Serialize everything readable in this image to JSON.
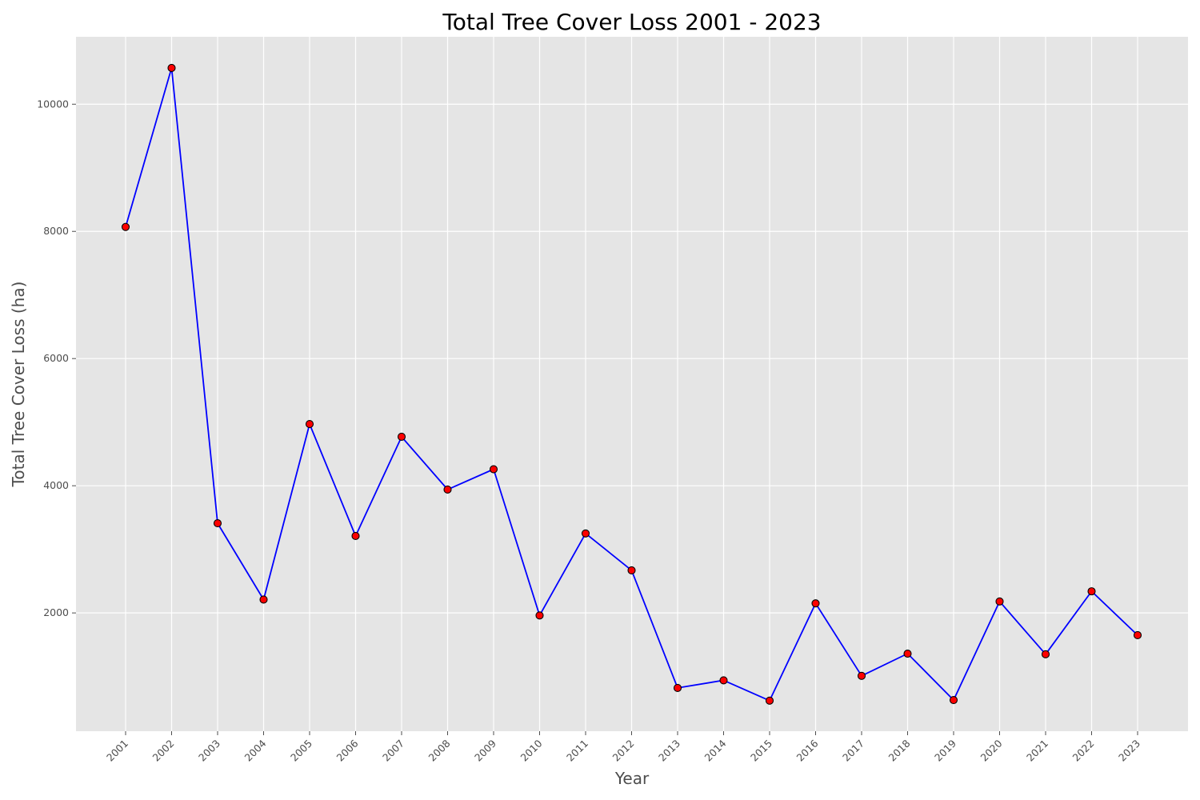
{
  "chart_data": {
    "type": "line",
    "title": "Total Tree Cover Loss 2001 - 2023",
    "xlabel": "Year",
    "ylabel": "Total Tree Cover Loss (ha)",
    "categories": [
      "2001",
      "2002",
      "2003",
      "2004",
      "2005",
      "2006",
      "2007",
      "2008",
      "2009",
      "2010",
      "2011",
      "2012",
      "2013",
      "2014",
      "2015",
      "2016",
      "2017",
      "2018",
      "2019",
      "2020",
      "2021",
      "2022",
      "2023"
    ],
    "series": [
      {
        "values": [
          8070,
          10570,
          3410,
          2210,
          4970,
          3210,
          4770,
          3940,
          4260,
          1960,
          3250,
          2670,
          820,
          940,
          620,
          2150,
          1010,
          1360,
          630,
          2180,
          1350,
          2340,
          1650
        ]
      }
    ],
    "yticks": [
      2000,
      4000,
      6000,
      8000,
      10000
    ],
    "ylim": [
      140,
      11060
    ],
    "grid": true,
    "line_color": "#0000ff",
    "marker_face_color": "#ff0000",
    "marker_edge_color": "#000000",
    "plot_background": "#e5e5e5",
    "grid_color": "#ffffff"
  }
}
